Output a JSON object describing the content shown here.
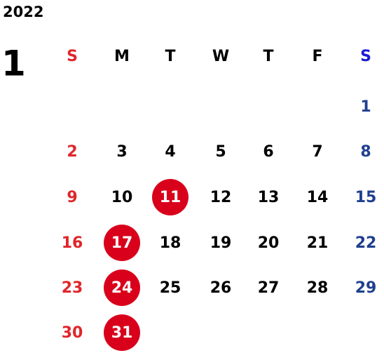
{
  "year": "2022",
  "month": "1",
  "weekdays": [
    "S",
    "M",
    "T",
    "W",
    "T",
    "F",
    "S"
  ],
  "weeks": [
    [
      null,
      null,
      null,
      null,
      null,
      null,
      "1"
    ],
    [
      "2",
      "3",
      "4",
      "5",
      "6",
      "7",
      "8"
    ],
    [
      "9",
      "10",
      {
        "text": "11",
        "marked": true
      },
      "12",
      "13",
      "14",
      "15"
    ],
    [
      "16",
      {
        "text": "17",
        "marked": true
      },
      "18",
      "19",
      "20",
      "21",
      "22"
    ],
    [
      "23",
      {
        "text": "24",
        "marked": true
      },
      "25",
      "26",
      "27",
      "28",
      "29"
    ],
    [
      "30",
      {
        "text": "31",
        "marked": true
      },
      null,
      null,
      null,
      null,
      null
    ]
  ]
}
